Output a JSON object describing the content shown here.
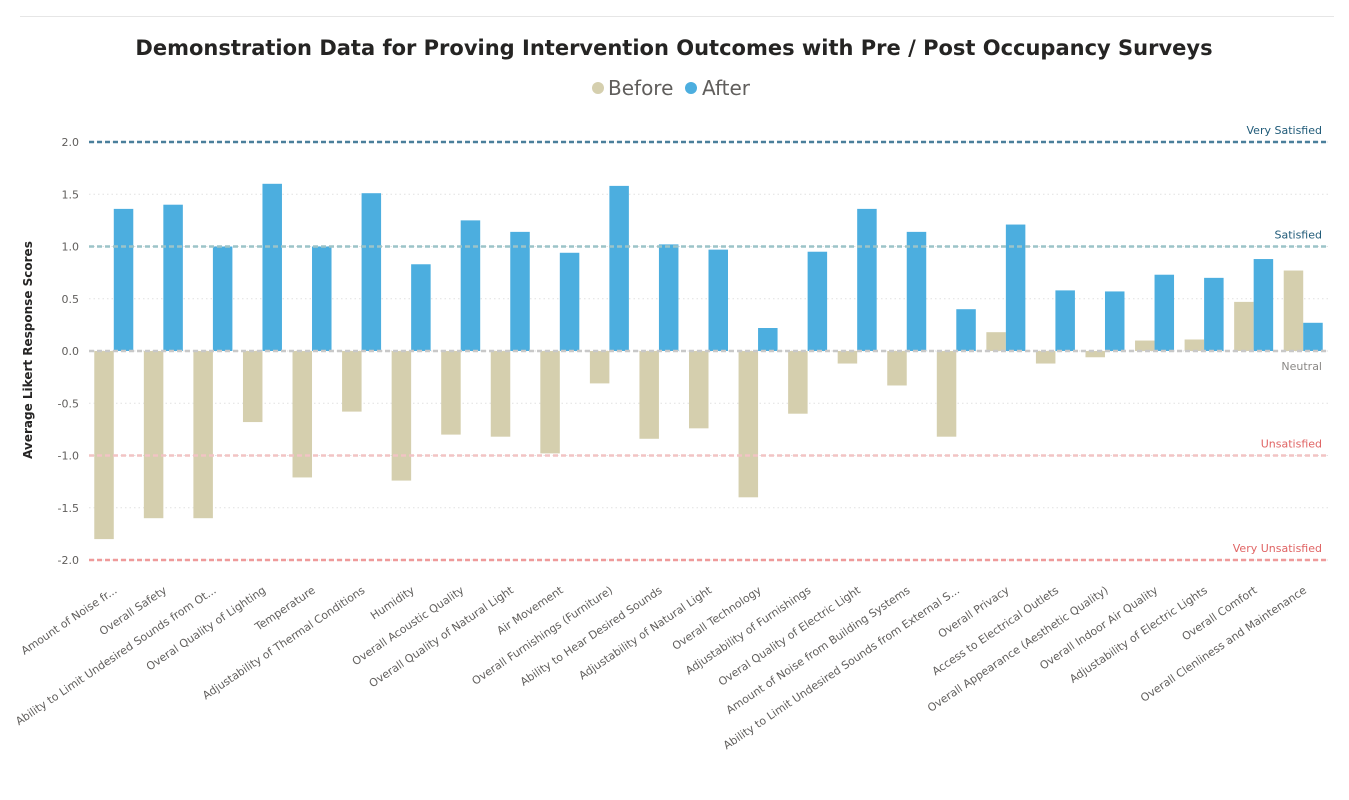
{
  "chart_data": {
    "type": "bar",
    "title": "Demonstration Data for Proving Intervention Outcomes with Pre / Post Occupancy Surveys",
    "ylabel": "Average Likert Response Scores",
    "xlabel": "",
    "ylim": [
      -2.0,
      2.0
    ],
    "yticks": [
      "2.0",
      "1.5",
      "1.0",
      "0.5",
      "0.0",
      "-0.5",
      "-1.0",
      "-1.5",
      "-2.0"
    ],
    "grid": true,
    "legend_position": "top-center",
    "categories": [
      "Amount of Noise fr...",
      "Overall Safety",
      "Ability to Limit Undesired Sounds from Ot...",
      "Overal Quality of Lighting",
      "Temperature",
      "Adjustability of Thermal Conditions",
      "Humidity",
      "Overall Acoustic Quality",
      "Overall Quality of Natural Light",
      "Air Movement",
      "Overall Furnishings (Furniture)",
      "Ability to Hear Desired Sounds",
      "Adjustability of Natural Light",
      "Overall Technology",
      "Adjustability of Furnishings",
      "Overal Quality of Electric Light",
      "Amount of Noise from Building Systems",
      "Ability to Limit Undesired Sounds from External S...",
      "Overall Privacy",
      "Access to Electrical Outlets",
      "Overall Appearance (Aesthetic Quality)",
      "Overall Indoor Air Quality",
      "Adjustability of Electric Lights",
      "Overall Comfort",
      "Overall Clenliness and Maintenance"
    ],
    "series": [
      {
        "name": "Before",
        "color": "#d5cfae",
        "values": [
          -1.8,
          -1.6,
          -1.6,
          -0.68,
          -1.21,
          -0.58,
          -1.24,
          -0.8,
          -0.82,
          -0.98,
          -0.31,
          -0.84,
          -0.74,
          -1.4,
          -0.6,
          -0.12,
          -0.33,
          -0.82,
          0.18,
          -0.12,
          -0.06,
          0.1,
          0.11,
          0.47,
          0.77
        ]
      },
      {
        "name": "After",
        "color": "#4caedf",
        "values": [
          1.36,
          1.4,
          1.0,
          1.6,
          1.0,
          1.51,
          0.83,
          1.25,
          1.14,
          0.94,
          1.58,
          1.02,
          0.97,
          0.22,
          0.95,
          1.36,
          1.14,
          0.4,
          1.21,
          0.58,
          0.57,
          0.73,
          0.7,
          0.88,
          0.27
        ]
      }
    ],
    "reference_lines": [
      {
        "label": "Very Satisfied",
        "value": 2.0,
        "color": "#4a7f9b",
        "label_color": "#1f5a78"
      },
      {
        "label": "Satisfied",
        "value": 1.0,
        "color": "#9cc4c8",
        "label_color": "#1f5a78"
      },
      {
        "label": "Neutral",
        "value": 0.0,
        "color": "#c8c8c8",
        "label_color": "#8a8886"
      },
      {
        "label": "Unsatisfied",
        "value": -1.0,
        "color": "#f2c4c4",
        "label_color": "#e06464"
      },
      {
        "label": "Very Unsatisfied",
        "value": -2.0,
        "color": "#ef9a9a",
        "label_color": "#e06464"
      }
    ]
  }
}
